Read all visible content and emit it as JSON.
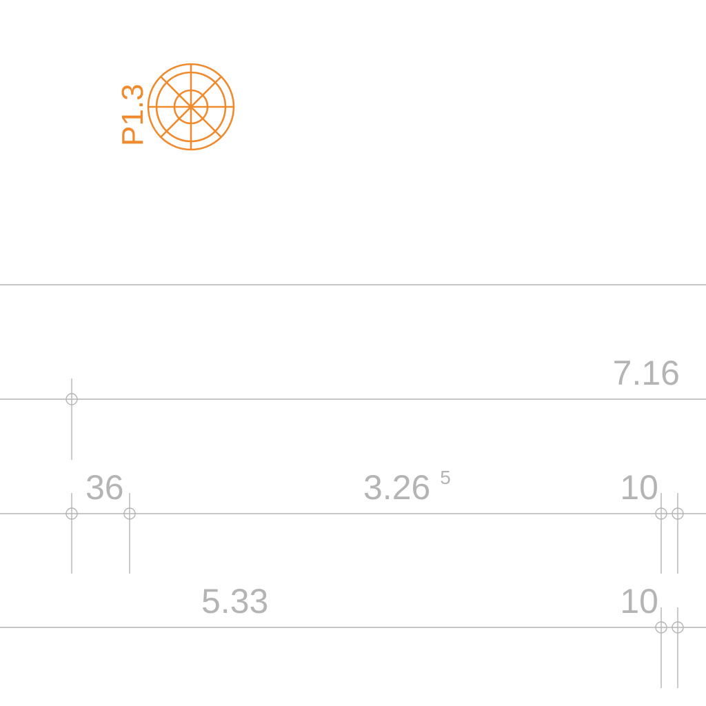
{
  "drawing": {
    "colors": {
      "background": "#ffffff",
      "dimension": "#b4b4b4",
      "survey_point": "#f08a2c"
    },
    "survey_point": {
      "label": "P1.3",
      "icon": "concentric-target-icon"
    },
    "dimensions": {
      "overall": {
        "text": "7.16"
      },
      "seg_36": {
        "text": "36"
      },
      "seg_326": {
        "base": "3.26",
        "sup": "5"
      },
      "seg_10_a": {
        "text": "10"
      },
      "seg_533": {
        "text": "5.33"
      },
      "seg_10_b": {
        "text": "10"
      }
    }
  }
}
